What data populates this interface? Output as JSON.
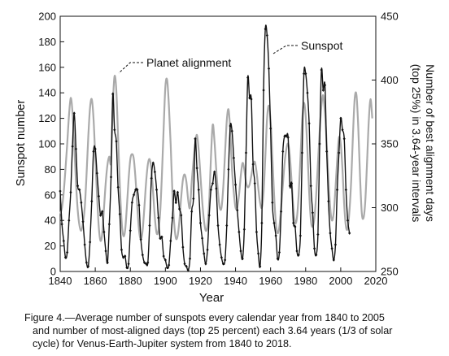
{
  "chart_data": {
    "type": "line",
    "xlabel": "Year",
    "ylabel": "Sunspot number",
    "y2label_line1": "Number of best alignment days",
    "y2label_line2": "(top 25%) in 3.64-year intervals",
    "xlim": [
      1840,
      2020
    ],
    "ylim": [
      0,
      200
    ],
    "y2lim": [
      250,
      450
    ],
    "xticks": [
      1840,
      1860,
      1880,
      1900,
      1920,
      1940,
      1960,
      1980,
      2000,
      2020
    ],
    "yticks": [
      0,
      20,
      40,
      60,
      80,
      100,
      120,
      140,
      160,
      180,
      200
    ],
    "y2ticks": [
      250,
      300,
      350,
      400,
      450
    ],
    "annotations": [
      {
        "text": "Planet alignment",
        "x": 1871,
        "y": 155
      },
      {
        "text": "Sunspot",
        "x": 1958,
        "y": 188
      }
    ],
    "series": [
      {
        "name": "Sunspot",
        "axis": "left",
        "color": "#111111",
        "x": [
          1840,
          1841,
          1842,
          1843,
          1844,
          1845,
          1846,
          1847,
          1848,
          1849,
          1850,
          1851,
          1852,
          1853,
          1854,
          1855,
          1856,
          1857,
          1858,
          1859,
          1860,
          1861,
          1862,
          1863,
          1864,
          1865,
          1866,
          1867,
          1868,
          1869,
          1870,
          1871,
          1872,
          1873,
          1874,
          1875,
          1876,
          1877,
          1878,
          1879,
          1880,
          1881,
          1882,
          1883,
          1884,
          1885,
          1886,
          1887,
          1888,
          1889,
          1890,
          1891,
          1892,
          1893,
          1894,
          1895,
          1896,
          1897,
          1898,
          1899,
          1900,
          1901,
          1902,
          1903,
          1904,
          1905,
          1906,
          1907,
          1908,
          1909,
          1910,
          1911,
          1912,
          1913,
          1914,
          1915,
          1916,
          1917,
          1918,
          1919,
          1920,
          1921,
          1922,
          1923,
          1924,
          1925,
          1926,
          1927,
          1928,
          1929,
          1930,
          1931,
          1932,
          1933,
          1934,
          1935,
          1936,
          1937,
          1938,
          1939,
          1940,
          1941,
          1942,
          1943,
          1944,
          1945,
          1946,
          1947,
          1948,
          1949,
          1950,
          1951,
          1952,
          1953,
          1954,
          1955,
          1956,
          1957,
          1958,
          1959,
          1960,
          1961,
          1962,
          1963,
          1964,
          1965,
          1966,
          1967,
          1968,
          1969,
          1970,
          1971,
          1972,
          1973,
          1974,
          1975,
          1976,
          1977,
          1978,
          1979,
          1980,
          1981,
          1982,
          1983,
          1984,
          1985,
          1986,
          1987,
          1988,
          1989,
          1990,
          1991,
          1992,
          1993,
          1994,
          1995,
          1996,
          1997,
          1998,
          1999,
          2000,
          2001,
          2002,
          2003,
          2004,
          2005
        ],
        "values": [
          63,
          37,
          24,
          11,
          15,
          40,
          62,
          98,
          124,
          96,
          67,
          64,
          54,
          39,
          21,
          7,
          4,
          23,
          55,
          94,
          96,
          77,
          59,
          44,
          47,
          31,
          16,
          7,
          37,
          74,
          139,
          111,
          102,
          66,
          45,
          17,
          11,
          12,
          3,
          6,
          32,
          54,
          60,
          64,
          64,
          52,
          25,
          13,
          7,
          6,
          7,
          36,
          73,
          85,
          78,
          64,
          42,
          26,
          27,
          12,
          9,
          3,
          5,
          24,
          42,
          63,
          54,
          62,
          49,
          44,
          19,
          6,
          4,
          1,
          10,
          47,
          57,
          104,
          81,
          64,
          38,
          26,
          14,
          6,
          17,
          44,
          64,
          69,
          78,
          65,
          36,
          21,
          11,
          6,
          9,
          36,
          80,
          114,
          110,
          89,
          68,
          48,
          31,
          16,
          10,
          33,
          93,
          152,
          136,
          135,
          84,
          69,
          31,
          14,
          4,
          38,
          142,
          190,
          185,
          159,
          112,
          54,
          38,
          28,
          10,
          15,
          47,
          94,
          106,
          106,
          105,
          67,
          69,
          38,
          35,
          16,
          13,
          28,
          93,
          155,
          155,
          140,
          116,
          67,
          46,
          18,
          13,
          29,
          100,
          158,
          142,
          146,
          94,
          55,
          30,
          18,
          9,
          21,
          64,
          93,
          120,
          111,
          104,
          64,
          40,
          30
        ]
      },
      {
        "name": "Planet alignment",
        "axis": "right",
        "color": "#aaaaaa",
        "x": [
          1840,
          1841,
          1842,
          1843,
          1844,
          1845,
          1846,
          1847,
          1848,
          1849,
          1850,
          1851,
          1852,
          1853,
          1854,
          1855,
          1856,
          1857,
          1858,
          1859,
          1860,
          1861,
          1862,
          1863,
          1864,
          1865,
          1866,
          1867,
          1868,
          1869,
          1870,
          1871,
          1872,
          1873,
          1874,
          1875,
          1876,
          1877,
          1878,
          1879,
          1880,
          1881,
          1882,
          1883,
          1884,
          1885,
          1886,
          1887,
          1888,
          1889,
          1890,
          1891,
          1892,
          1893,
          1894,
          1895,
          1896,
          1897,
          1898,
          1899,
          1900,
          1901,
          1902,
          1903,
          1904,
          1905,
          1906,
          1907,
          1908,
          1909,
          1910,
          1911,
          1912,
          1913,
          1914,
          1915,
          1916,
          1917,
          1918,
          1919,
          1920,
          1921,
          1922,
          1923,
          1924,
          1925,
          1926,
          1927,
          1928,
          1929,
          1930,
          1931,
          1932,
          1933,
          1934,
          1935,
          1936,
          1937,
          1938,
          1939,
          1940,
          1941,
          1942,
          1943,
          1944,
          1945,
          1946,
          1947,
          1948,
          1949,
          1950,
          1951,
          1952,
          1953,
          1954,
          1955,
          1956,
          1957,
          1958,
          1959,
          1960,
          1961,
          1962,
          1963,
          1964,
          1965,
          1966,
          1967,
          1968,
          1969,
          1970,
          1971,
          1972,
          1973,
          1974,
          1975,
          1976,
          1977,
          1978,
          1979,
          1980,
          1981,
          1982,
          1983,
          1984,
          1985,
          1986,
          1987,
          1988,
          1989,
          1990,
          1991,
          1992,
          1993,
          1994,
          1995,
          1996,
          1997,
          1998,
          1999,
          2000,
          2001,
          2002,
          2003,
          2004,
          2005,
          2006,
          2007,
          2008,
          2009,
          2010,
          2011,
          2012,
          2013,
          2014,
          2015,
          2016,
          2017,
          2018
        ],
        "values": [
          295,
          300,
          312,
          330,
          350,
          372,
          386,
          375,
          350,
          320,
          298,
          286,
          282,
          288,
          300,
          325,
          355,
          378,
          385,
          370,
          340,
          310,
          285,
          274,
          280,
          300,
          320,
          334,
          340,
          336,
          380,
          403,
          392,
          356,
          318,
          290,
          278,
          282,
          300,
          322,
          338,
          342,
          338,
          322,
          300,
          282,
          275,
          282,
          300,
          320,
          334,
          338,
          330,
          312,
          292,
          280,
          282,
          296,
          325,
          362,
          395,
          400,
          380,
          350,
          312,
          288,
          276,
          278,
          290,
          308,
          322,
          326,
          320,
          306,
          300,
          320,
          336,
          350,
          357,
          345,
          325,
          305,
          290,
          282,
          286,
          305,
          340,
          365,
          352,
          330,
          312,
          300,
          300,
          316,
          342,
          368,
          377,
          360,
          330,
          312,
          300,
          300,
          310,
          325,
          335,
          330,
          320,
          316,
          318,
          325,
          333,
          336,
          328,
          315,
          304,
          300,
          312,
          340,
          370,
          380,
          368,
          340,
          310,
          288,
          280,
          285,
          300,
          318,
          335,
          346,
          350,
          340,
          320,
          300,
          288,
          292,
          310,
          338,
          368,
          382,
          372,
          345,
          312,
          290,
          285,
          292,
          310,
          335,
          360,
          380,
          388,
          374,
          350,
          322,
          300,
          290,
          296,
          315,
          338,
          355,
          350,
          330,
          302,
          285,
          284,
          298,
          322,
          358,
          386,
          388,
          363,
          325,
          296,
          292,
          305,
          335,
          368,
          385,
          370
        ]
      }
    ]
  },
  "caption": {
    "line1": "Figure 4.—Average number of sunspots every calendar year from 1840 to 2005",
    "line2": "and number of most-aligned days (top 25 percent) each 3.64 years (1/3 of solar",
    "line3": "cycle) for Venus-Earth-Jupiter system from 1840 to 2018."
  }
}
